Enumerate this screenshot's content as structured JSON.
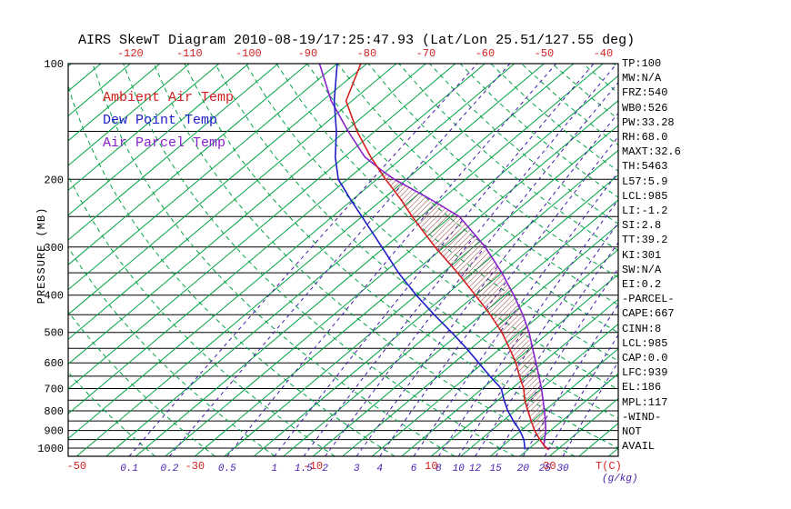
{
  "title": "AIRS SkewT Diagram 2010-08-19/17:25:47.93 (Lat/Lon 25.51/127.55 deg)",
  "legend": [
    {
      "label": "Ambient Air Temp",
      "color": "#d42020"
    },
    {
      "label": "Dew Point Temp",
      "color": "#2020c8"
    },
    {
      "label": "Air Parcel Temp",
      "color": "#8822cc"
    }
  ],
  "axes": {
    "pressure_label": "PRESSURE (MB)",
    "pressure_ticks": [
      100,
      200,
      300,
      400,
      500,
      600,
      700,
      800,
      900,
      1000
    ],
    "top_temp_labels": [
      -120,
      -110,
      -100,
      -90,
      -80,
      -70,
      -60,
      -50,
      -40
    ],
    "bottom_temp_labels": [
      -50,
      -30,
      -10,
      10,
      30
    ],
    "temp_unit_label": "T(C)",
    "mixing_ratio_labels": [
      0.1,
      0.2,
      0.5,
      1,
      1.5,
      2,
      3,
      4,
      6,
      8,
      10,
      12,
      15,
      20,
      25,
      30
    ],
    "mixing_ratio_unit_label": "(g/kg)"
  },
  "stats": [
    "TP:100",
    "MW:N/A",
    "FRZ:540",
    "WB0:526",
    "PW:33.28",
    "RH:68.0",
    "MAXT:32.6",
    "TH:5463",
    "L57:5.9",
    "LCL:985",
    "LI:-1.2",
    "SI:2.8",
    "TT:39.2",
    "KI:301",
    "SW:N/A",
    "EI:0.2",
    "-PARCEL-",
    "CAPE:667",
    "CINH:8",
    "LCL:985",
    "CAP:0.0",
    "LFC:939",
    "EL:186",
    "MPL:117",
    "-WIND-",
    "NOT",
    "AVAIL"
  ],
  "colors": {
    "isotherm": "#00a244",
    "dry_adiabat": "#00a244",
    "mixing_ratio": "#4419aa",
    "pressure_line": "#000000",
    "frame": "#000000",
    "ambient": "#d42020",
    "dewpoint": "#2020c8",
    "parcel": "#8822cc",
    "top_labels": "#d42020",
    "bottom_temp_labels": "#d42020",
    "hatch": "#994444"
  },
  "chart_data": {
    "type": "line",
    "diagram": "skew-t-log-p",
    "title": "AIRS SkewT Diagram 2010-08-19/17:25:47.93 (Lat/Lon 25.51/127.55 deg)",
    "xlabel": "T(C)",
    "ylabel": "PRESSURE (MB)",
    "pressure_hpa_range": [
      100,
      1050
    ],
    "isotherms_c": {
      "min": -135,
      "max": 45,
      "step": 5
    },
    "dry_adiabats_theta_c": {
      "min": -40,
      "max": 180,
      "step": 10
    },
    "mixing_ratio_lines_gkg": [
      0.1,
      0.2,
      0.5,
      1,
      1.5,
      2,
      3,
      4,
      6,
      8,
      10,
      12,
      15,
      20,
      25,
      30
    ],
    "series": [
      {
        "name": "Ambient Air Temp",
        "points_p_t": [
          [
            1008,
            28.5
          ],
          [
            1000,
            27.8
          ],
          [
            950,
            25.0
          ],
          [
            900,
            22.3
          ],
          [
            850,
            19.8
          ],
          [
            800,
            17.2
          ],
          [
            750,
            14.5
          ],
          [
            700,
            12.0
          ],
          [
            650,
            8.8
          ],
          [
            600,
            5.5
          ],
          [
            550,
            1.5
          ],
          [
            500,
            -3.0
          ],
          [
            450,
            -8.5
          ],
          [
            400,
            -15.0
          ],
          [
            350,
            -22.5
          ],
          [
            300,
            -31.5
          ],
          [
            250,
            -41.5
          ],
          [
            225,
            -47.0
          ],
          [
            200,
            -53.5
          ],
          [
            175,
            -60.5
          ],
          [
            150,
            -68.0
          ],
          [
            125,
            -76.0
          ],
          [
            100,
            -81.0
          ]
        ]
      },
      {
        "name": "Dew Point Temp",
        "points_p_t": [
          [
            1008,
            24.5
          ],
          [
            1000,
            24.2
          ],
          [
            950,
            22.3
          ],
          [
            900,
            19.8
          ],
          [
            850,
            16.8
          ],
          [
            800,
            13.8
          ],
          [
            750,
            11.0
          ],
          [
            700,
            8.2
          ],
          [
            650,
            3.8
          ],
          [
            600,
            -0.8
          ],
          [
            550,
            -5.8
          ],
          [
            500,
            -11.5
          ],
          [
            450,
            -18.0
          ],
          [
            400,
            -25.0
          ],
          [
            350,
            -32.5
          ],
          [
            300,
            -40.5
          ],
          [
            250,
            -50.0
          ],
          [
            225,
            -55.5
          ],
          [
            200,
            -61.5
          ],
          [
            175,
            -66.5
          ],
          [
            150,
            -71.5
          ],
          [
            125,
            -78.0
          ],
          [
            100,
            -85.0
          ]
        ]
      },
      {
        "name": "Air Parcel Temp",
        "points_p_t": [
          [
            1008,
            28.5
          ],
          [
            985,
            26.9
          ],
          [
            950,
            25.8
          ],
          [
            900,
            24.2
          ],
          [
            850,
            22.2
          ],
          [
            800,
            20.0
          ],
          [
            750,
            17.6
          ],
          [
            700,
            15.0
          ],
          [
            650,
            12.1
          ],
          [
            600,
            8.9
          ],
          [
            550,
            5.4
          ],
          [
            500,
            1.6
          ],
          [
            450,
            -3.0
          ],
          [
            400,
            -8.5
          ],
          [
            350,
            -15.0
          ],
          [
            300,
            -23.0
          ],
          [
            250,
            -33.5
          ],
          [
            225,
            -42.0
          ],
          [
            200,
            -52.0
          ],
          [
            190,
            -55.8
          ],
          [
            175,
            -61.5
          ],
          [
            150,
            -69.5
          ],
          [
            125,
            -78.5
          ],
          [
            100,
            -88.0
          ]
        ]
      }
    ],
    "cape_region": {
      "pressure_bottom": 950,
      "pressure_top": 200,
      "apex_p_t": [
        191,
        -55.8
      ]
    },
    "stats_cape": 667,
    "stats_cinh": 8,
    "stats_lcl": 985,
    "stats_lfc": 939,
    "stats_el": 186
  }
}
